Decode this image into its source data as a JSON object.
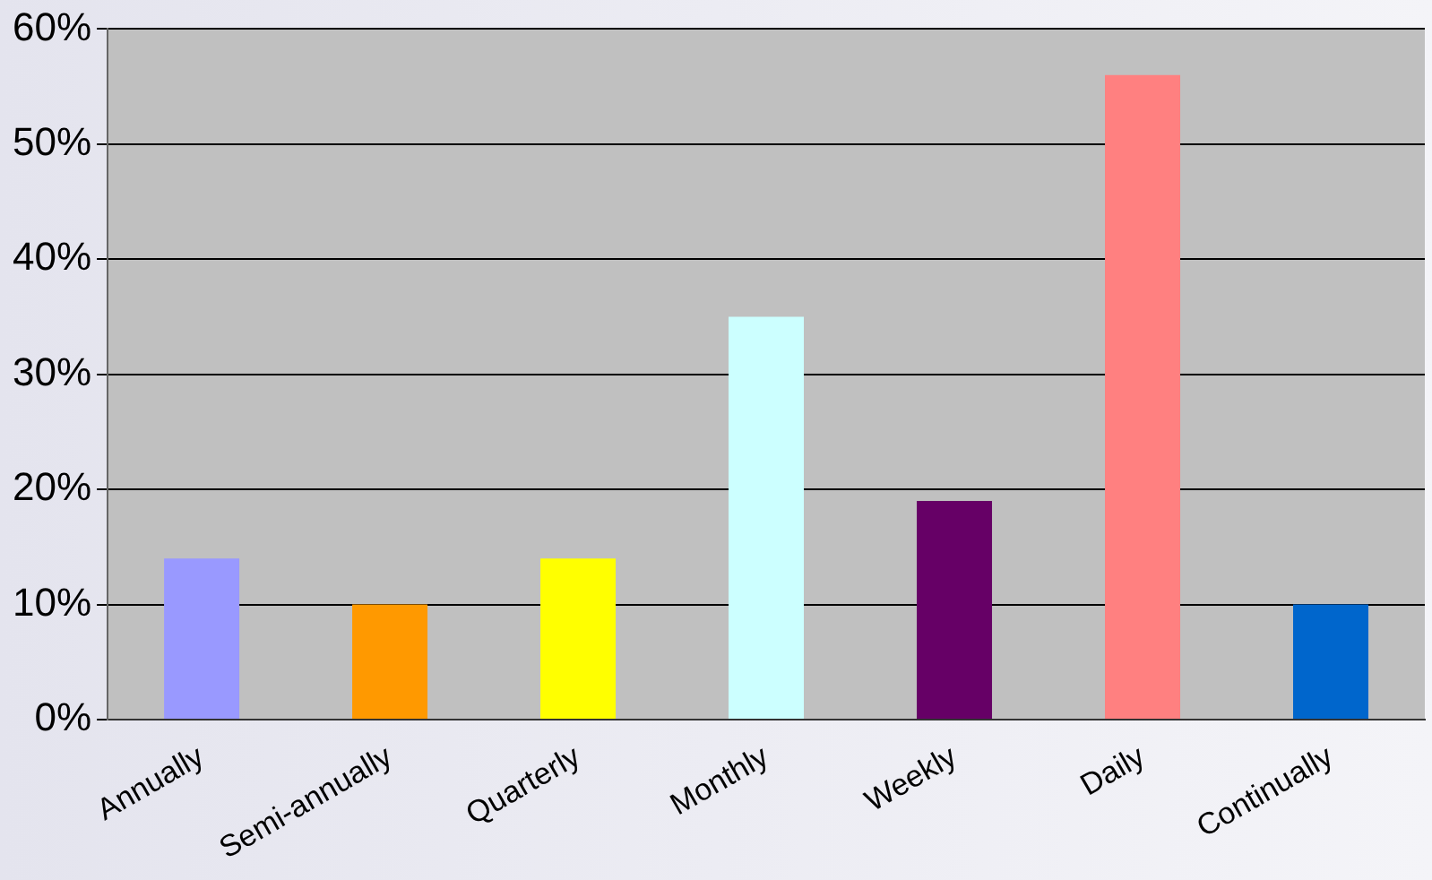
{
  "chart_data": {
    "type": "bar",
    "categories": [
      "Annually",
      "Semi-annually",
      "Quarterly",
      "Monthly",
      "Weekly",
      "Daily",
      "Continually"
    ],
    "values": [
      14,
      10,
      14,
      35,
      19,
      56,
      10
    ],
    "colors": [
      "#9999ff",
      "#ff9900",
      "#ffff00",
      "#ccffff",
      "#660066",
      "#ff8080",
      "#0066cc"
    ],
    "ylim": [
      0,
      60
    ],
    "yticks": [
      {
        "value": 0,
        "label": "0%"
      },
      {
        "value": 10,
        "label": "10%"
      },
      {
        "value": 20,
        "label": "20%"
      },
      {
        "value": 30,
        "label": "30%"
      },
      {
        "value": 40,
        "label": "40%"
      },
      {
        "value": 50,
        "label": "50%"
      },
      {
        "value": 60,
        "label": "60%"
      }
    ],
    "grid": "y",
    "legend": false
  }
}
